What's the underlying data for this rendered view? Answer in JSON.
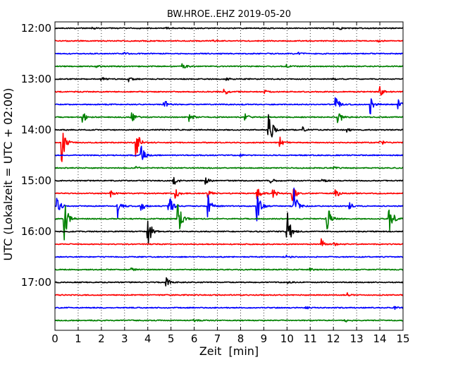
{
  "chart_data": {
    "type": "line",
    "title": "BW.HROE..EHZ 2019-05-20",
    "xlabel": "Zeit  [min]",
    "ylabel": "UTC (Lokalzeit = UTC + 02:00)",
    "xlim": [
      0,
      15
    ],
    "x_ticks": [
      "0",
      "1",
      "2",
      "3",
      "4",
      "5",
      "6",
      "7",
      "8",
      "9",
      "10",
      "11",
      "12",
      "13",
      "14",
      "15"
    ],
    "y_ticks": [
      "12:00",
      "13:00",
      "14:00",
      "15:00",
      "16:00",
      "17:00"
    ],
    "row_minutes": 15,
    "grid": "vertical dotted lines at each minute",
    "colors": [
      "#000000",
      "#ff0000",
      "#0000ff",
      "#008000"
    ],
    "series": [
      {
        "start": "12:00",
        "events": [
          {
            "t": 1.6,
            "a": 0.1
          },
          {
            "t": 4.8,
            "a": 0.08
          },
          {
            "t": 12.3,
            "a": 0.08
          }
        ]
      },
      {
        "start": "12:15",
        "events": [
          {
            "t": 6.8,
            "a": 0.08
          },
          {
            "t": 13.9,
            "a": 0.1
          }
        ]
      },
      {
        "start": "12:30",
        "events": [
          {
            "t": 3.0,
            "a": 0.07
          },
          {
            "t": 10.5,
            "a": 0.07
          }
        ]
      },
      {
        "start": "12:45",
        "events": [
          {
            "t": 1.8,
            "a": 0.08
          },
          {
            "t": 5.5,
            "a": 0.22
          },
          {
            "t": 10.0,
            "a": 0.12
          }
        ]
      },
      {
        "start": "13:00",
        "events": [
          {
            "t": 2.0,
            "a": 0.25
          },
          {
            "t": 3.2,
            "a": 0.2
          },
          {
            "t": 7.4,
            "a": 0.1
          },
          {
            "t": 12.0,
            "a": 0.12
          }
        ]
      },
      {
        "start": "13:15",
        "events": [
          {
            "t": 7.3,
            "a": 0.3
          },
          {
            "t": 9.0,
            "a": 0.15
          },
          {
            "t": 14.0,
            "a": 0.45
          }
        ]
      },
      {
        "start": "13:30",
        "events": [
          {
            "t": 4.7,
            "a": 0.45
          },
          {
            "t": 12.1,
            "a": 0.7
          },
          {
            "t": 13.6,
            "a": 0.75
          },
          {
            "t": 14.8,
            "a": 0.35
          }
        ]
      },
      {
        "start": "13:45",
        "events": [
          {
            "t": 1.2,
            "a": 0.45
          },
          {
            "t": 3.3,
            "a": 0.5
          },
          {
            "t": 5.8,
            "a": 0.35
          },
          {
            "t": 8.2,
            "a": 0.3
          },
          {
            "t": 12.2,
            "a": 0.75
          }
        ]
      },
      {
        "start": "14:00",
        "events": [
          {
            "t": 9.2,
            "a": 1.8
          },
          {
            "t": 10.7,
            "a": 0.2
          },
          {
            "t": 12.6,
            "a": 0.15
          }
        ]
      },
      {
        "start": "14:15",
        "events": [
          {
            "t": 0.3,
            "a": 1.6
          },
          {
            "t": 3.5,
            "a": 1.2
          },
          {
            "t": 9.7,
            "a": 0.4
          },
          {
            "t": 14.0,
            "a": 0.3
          }
        ]
      },
      {
        "start": "14:30",
        "events": [
          {
            "t": 3.7,
            "a": 0.9
          },
          {
            "t": 8.0,
            "a": 0.1
          }
        ]
      },
      {
        "start": "14:45",
        "events": [
          {
            "t": 3.5,
            "a": 0.1
          },
          {
            "t": 12.0,
            "a": 0.1
          }
        ]
      },
      {
        "start": "15:00",
        "events": [
          {
            "t": 5.1,
            "a": 0.45
          },
          {
            "t": 6.5,
            "a": 0.25
          },
          {
            "t": 9.3,
            "a": 0.2
          },
          {
            "t": 11.5,
            "a": 0.15
          }
        ]
      },
      {
        "start": "15:15",
        "events": [
          {
            "t": 2.4,
            "a": 0.3
          },
          {
            "t": 5.2,
            "a": 0.4
          },
          {
            "t": 6.6,
            "a": 0.35
          },
          {
            "t": 8.7,
            "a": 0.6
          },
          {
            "t": 9.4,
            "a": 0.35
          },
          {
            "t": 10.2,
            "a": 1.0
          },
          {
            "t": 12.1,
            "a": 0.4
          }
        ]
      },
      {
        "start": "15:30",
        "events": [
          {
            "t": 0.1,
            "a": 0.8
          },
          {
            "t": 2.7,
            "a": 0.9
          },
          {
            "t": 3.7,
            "a": 0.6
          },
          {
            "t": 4.9,
            "a": 1.0
          },
          {
            "t": 6.6,
            "a": 1.1
          },
          {
            "t": 8.7,
            "a": 1.3
          },
          {
            "t": 10.3,
            "a": 1.4
          },
          {
            "t": 12.7,
            "a": 0.3
          }
        ]
      },
      {
        "start": "15:45",
        "events": [
          {
            "t": 0.4,
            "a": 1.8
          },
          {
            "t": 5.3,
            "a": 1.5
          },
          {
            "t": 11.7,
            "a": 1.7
          },
          {
            "t": 14.4,
            "a": 1.6
          }
        ]
      },
      {
        "start": "16:00",
        "events": [
          {
            "t": 4.0,
            "a": 1.4
          },
          {
            "t": 10.0,
            "a": 1.8
          }
        ]
      },
      {
        "start": "16:15",
        "events": [
          {
            "t": 11.5,
            "a": 0.4
          },
          {
            "t": 12.0,
            "a": 0.15
          }
        ]
      },
      {
        "start": "16:30",
        "events": [
          {
            "t": 10.0,
            "a": 0.1
          }
        ]
      },
      {
        "start": "16:45",
        "events": [
          {
            "t": 3.3,
            "a": 0.1
          },
          {
            "t": 11.0,
            "a": 0.1
          }
        ]
      },
      {
        "start": "17:00",
        "events": [
          {
            "t": 4.8,
            "a": 0.35
          },
          {
            "t": 10.0,
            "a": 0.1
          }
        ]
      },
      {
        "start": "17:15",
        "events": [
          {
            "t": 12.6,
            "a": 0.2
          }
        ]
      },
      {
        "start": "17:30",
        "events": [
          {
            "t": 10.8,
            "a": 0.2
          },
          {
            "t": 14.6,
            "a": 0.15
          }
        ]
      },
      {
        "start": "17:45",
        "events": [
          {
            "t": 6.0,
            "a": 0.15
          },
          {
            "t": 12.5,
            "a": 0.15
          }
        ]
      }
    ]
  }
}
